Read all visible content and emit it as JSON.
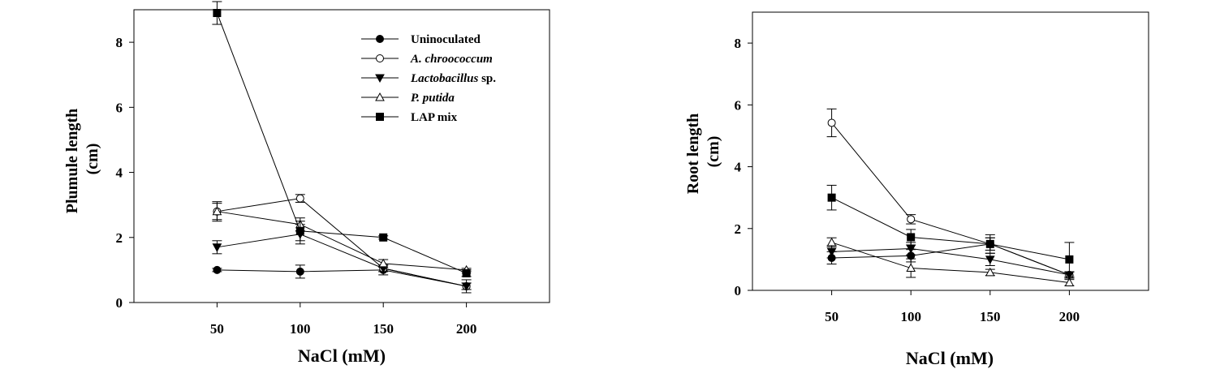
{
  "chart_data": [
    {
      "type": "line",
      "xlabel": "NaCl (mM)",
      "ylabel_line1": "Plumule length",
      "ylabel_line2": "(cm)",
      "xlim": [
        0,
        250
      ],
      "ylim": [
        0,
        9
      ],
      "xticks": [
        50,
        100,
        150,
        200
      ],
      "yticks": [
        0,
        2,
        4,
        6,
        8
      ],
      "legend_position": "top-right",
      "x": [
        50,
        100,
        150,
        200
      ],
      "series": [
        {
          "name": "Uninoculated",
          "marker": "circle-filled",
          "values": [
            1.0,
            0.95,
            1.0,
            0.5
          ],
          "errors": [
            0.05,
            0.2,
            0.15,
            0.2
          ]
        },
        {
          "name": "A. chroococcum",
          "marker": "circle-open",
          "values": [
            2.8,
            3.2,
            1.05,
            0.5
          ],
          "errors": [
            0.25,
            0.12,
            0.1,
            0.1
          ]
        },
        {
          "name": "Lactobacillus sp.",
          "marker": "triangle-down-filled",
          "values": [
            1.7,
            2.1,
            1.05,
            0.5
          ],
          "errors": [
            0.2,
            0.3,
            0.1,
            0.1
          ]
        },
        {
          "name": "P. putida",
          "marker": "triangle-up-open",
          "values": [
            2.8,
            2.4,
            1.2,
            1.0
          ],
          "errors": [
            0.3,
            0.2,
            0.12,
            0.05
          ]
        },
        {
          "name": "LAP mix",
          "marker": "square-filled",
          "values": [
            8.9,
            2.2,
            2.0,
            0.9
          ],
          "errors": [
            0.35,
            0.3,
            0.05,
            0.1
          ]
        }
      ],
      "legend": [
        {
          "prefix": "",
          "italic": "",
          "suffix": "Uninoculated"
        },
        {
          "prefix": "",
          "italic": "A. chroococcum",
          "suffix": ""
        },
        {
          "prefix": "",
          "italic": "Lactobacillus",
          "suffix": " sp."
        },
        {
          "prefix": "",
          "italic": "P. putida",
          "suffix": ""
        },
        {
          "prefix": "",
          "italic": "",
          "suffix": "LAP mix"
        }
      ]
    },
    {
      "type": "line",
      "xlabel": "NaCl (mM)",
      "ylabel_line1": "Root length",
      "ylabel_line2": "(cm)",
      "xlim": [
        0,
        250
      ],
      "ylim": [
        0,
        9
      ],
      "xticks": [
        50,
        100,
        150,
        200
      ],
      "yticks": [
        0,
        2,
        4,
        6,
        8
      ],
      "x": [
        50,
        100,
        150,
        200
      ],
      "series": [
        {
          "marker": "circle-filled",
          "values": [
            1.05,
            1.12,
            1.5,
            0.5
          ],
          "errors": [
            0.2,
            0.2,
            0.2,
            0.1
          ]
        },
        {
          "marker": "circle-open",
          "values": [
            5.42,
            2.3,
            1.5,
            0.5
          ],
          "errors": [
            0.45,
            0.15,
            0.2,
            0.1
          ]
        },
        {
          "marker": "triangle-down-filled",
          "values": [
            1.25,
            1.35,
            1.0,
            0.5
          ],
          "errors": [
            0.2,
            0.2,
            0.2,
            0.1
          ]
        },
        {
          "marker": "triangle-up-open",
          "values": [
            1.55,
            0.72,
            0.58,
            0.25
          ],
          "errors": [
            0.15,
            0.3,
            0.1,
            0.1
          ]
        },
        {
          "marker": "square-filled",
          "values": [
            3.0,
            1.72,
            1.5,
            1.0
          ],
          "errors": [
            0.4,
            0.25,
            0.3,
            0.55
          ]
        }
      ]
    }
  ]
}
